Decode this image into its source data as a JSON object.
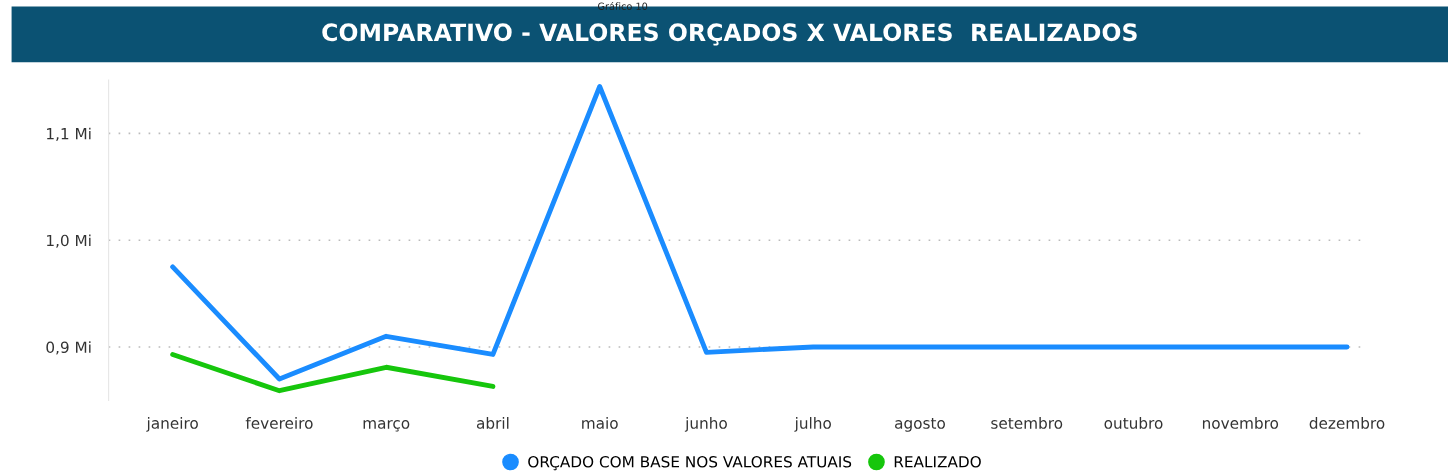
{
  "chart_data": {
    "type": "line",
    "title": "COMPARATIVO - VALORES ORÇADOS X VALORES  REALIZADOS",
    "annotations": [
      "Gráfico 10"
    ],
    "categories": [
      "janeiro",
      "fevereiro",
      "março",
      "abril",
      "maio",
      "junho",
      "julho",
      "agosto",
      "setembro",
      "outubro",
      "novembro",
      "dezembro"
    ],
    "series": [
      {
        "name": "ORÇADO COM BASE NOS VALORES ATUAIS",
        "color": "#1a8cff",
        "values": [
          0.975,
          0.87,
          0.91,
          0.893,
          1.144,
          0.895,
          0.9,
          0.9,
          0.9,
          0.9,
          0.9,
          0.9
        ]
      },
      {
        "name": "REALIZADO",
        "color": "#16c60c",
        "values": [
          0.893,
          0.859,
          0.881,
          0.863,
          null,
          null,
          null,
          null,
          null,
          null,
          null,
          null
        ]
      }
    ],
    "ylim": [
      0.85,
      1.15
    ],
    "yticks": [
      {
        "value": 0.9,
        "label": "0,9 Mi"
      },
      {
        "value": 1.0,
        "label": "1,0 Mi"
      },
      {
        "value": 1.1,
        "label": "1,1 Mi"
      }
    ],
    "grid": "y",
    "legend": "bottom",
    "marker": "none",
    "line_style": "solid"
  }
}
